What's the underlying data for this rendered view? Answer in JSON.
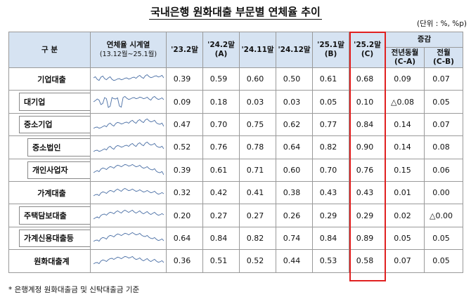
{
  "title": "국내은행 원화대출 부문별 연체율 추이",
  "unit": "(단위 : %, %p)",
  "headers": {
    "category": "구 분",
    "sparkline": "연체율 시계열",
    "sparkline_sub": "(13.12월~25.1월)",
    "periods": [
      {
        "top": "'23.2말",
        "sub": ""
      },
      {
        "top": "'24.2말",
        "sub": "(A)"
      },
      {
        "top": "'24.11말",
        "sub": ""
      },
      {
        "top": "'24.12말",
        "sub": ""
      },
      {
        "top": "'25.1말",
        "sub": "(B)"
      },
      {
        "top": "'25.2말",
        "sub": "(C)"
      }
    ],
    "change_group": "증감",
    "yoy": "전년동월",
    "yoy_sub": "(C-A)",
    "mom": "전월",
    "mom_sub": "(C-B)"
  },
  "rows": [
    {
      "label": "기업대출",
      "level": 0,
      "values": [
        "0.39",
        "0.59",
        "0.60",
        "0.50",
        "0.61",
        "0.68"
      ],
      "yoy": "0.09",
      "mom": "0.07"
    },
    {
      "label": "대기업",
      "level": 1,
      "values": [
        "0.09",
        "0.18",
        "0.03",
        "0.03",
        "0.05",
        "0.10"
      ],
      "yoy": "△0.08",
      "mom": "0.05"
    },
    {
      "label": "중소기업",
      "level": 1,
      "values": [
        "0.47",
        "0.70",
        "0.75",
        "0.62",
        "0.77",
        "0.84"
      ],
      "yoy": "0.14",
      "mom": "0.07"
    },
    {
      "label": "중소법인",
      "level": 2,
      "values": [
        "0.52",
        "0.76",
        "0.78",
        "0.64",
        "0.82",
        "0.90"
      ],
      "yoy": "0.14",
      "mom": "0.08"
    },
    {
      "label": "개인사업자",
      "level": 2,
      "values": [
        "0.39",
        "0.61",
        "0.71",
        "0.60",
        "0.70",
        "0.76"
      ],
      "yoy": "0.15",
      "mom": "0.06"
    },
    {
      "label": "가계대출",
      "level": 0,
      "values": [
        "0.32",
        "0.42",
        "0.41",
        "0.38",
        "0.43",
        "0.43"
      ],
      "yoy": "0.01",
      "mom": "0.00"
    },
    {
      "label": "주택담보대출",
      "level": 1,
      "values": [
        "0.20",
        "0.27",
        "0.27",
        "0.26",
        "0.29",
        "0.29"
      ],
      "yoy": "0.02",
      "mom": "△0.00"
    },
    {
      "label": "가계신용대출등",
      "level": 1,
      "values": [
        "0.64",
        "0.84",
        "0.82",
        "0.74",
        "0.84",
        "0.89"
      ],
      "yoy": "0.05",
      "mom": "0.05"
    },
    {
      "label": "원화대출계",
      "level": 0,
      "values": [
        "0.36",
        "0.51",
        "0.52",
        "0.44",
        "0.53",
        "0.58"
      ],
      "yoy": "0.07",
      "mom": "0.05"
    }
  ],
  "footnote": "* 은행계정 원화대출금 및 신탁대출금 기준",
  "colors": {
    "header_bg": "#d6e3f2",
    "highlight": "#e02020",
    "sparkline": "#4a6fa5"
  }
}
